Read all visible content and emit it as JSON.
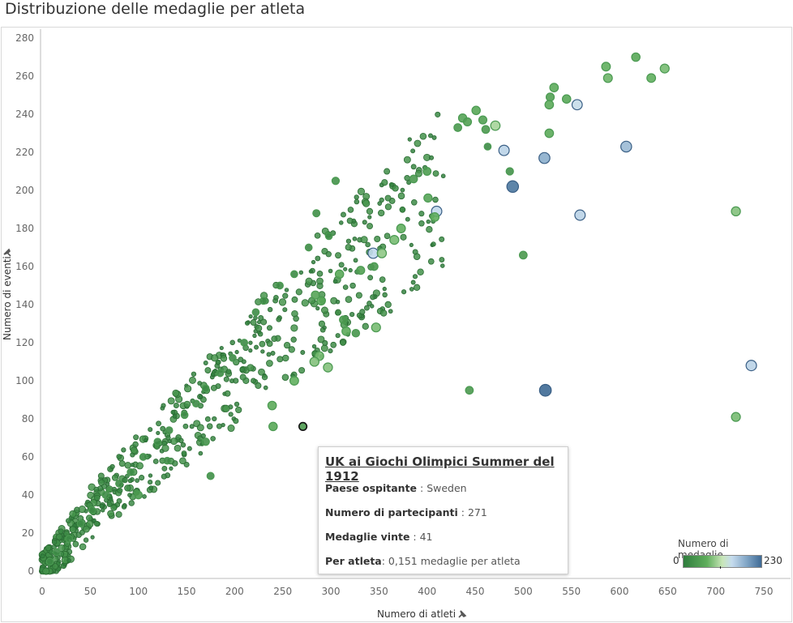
{
  "title": "Distribuzione delle medaglie per atleta",
  "axes": {
    "xlabel": "Numero di atleti",
    "ylabel": "Numero di eventi",
    "x_ticks": [
      "0",
      "50",
      "100",
      "150",
      "200",
      "250",
      "300",
      "350",
      "400",
      "450",
      "500",
      "550",
      "600",
      "650",
      "700",
      "750"
    ],
    "y_ticks": [
      "0",
      "20",
      "40",
      "60",
      "80",
      "100",
      "120",
      "140",
      "160",
      "180",
      "200",
      "220",
      "240",
      "260",
      "280"
    ],
    "pin_icon": "pin-icon"
  },
  "tooltip": {
    "heading": "UK ai Giochi Olimpici Summer del 1912",
    "host_label": "Paese ospitante",
    "host_value": " : Sweden",
    "participants_label": "Numero di partecipanti",
    "participants_value": " : 271",
    "medals_label": "Medaglie vinte",
    "medals_value": " : 41",
    "per_athlete_label": "Per atleta",
    "per_athlete_value": ": 0,151 medaglie per atleta"
  },
  "legend": {
    "title": "Numero di medaglie...",
    "min": "0",
    "max": "230",
    "colors": [
      "#2f7d3d",
      "#c8e6b8",
      "#3e6a95"
    ]
  },
  "chart_data": {
    "type": "scatter",
    "title": "Distribuzione delle medaglie per atleta",
    "xlabel": "Numero di atleti",
    "ylabel": "Numero di eventi",
    "xlim": [
      0,
      775
    ],
    "ylim": [
      0,
      280
    ],
    "grid": false,
    "legend": "bottom-right",
    "size_and_color": "Numero di medaglie (0-230)",
    "highlighted": {
      "x": 271,
      "y": 76,
      "label": "UK 1912"
    },
    "series": [
      {
        "points": [
          {
            "x": 617,
            "y": 270,
            "m": 60
          },
          {
            "x": 647,
            "y": 264,
            "m": 80
          },
          {
            "x": 586,
            "y": 265,
            "m": 70
          },
          {
            "x": 588,
            "y": 259,
            "m": 75
          },
          {
            "x": 633,
            "y": 259,
            "m": 70
          },
          {
            "x": 532,
            "y": 254,
            "m": 65
          },
          {
            "x": 545,
            "y": 248,
            "m": 60
          },
          {
            "x": 528,
            "y": 249,
            "m": 50
          },
          {
            "x": 527,
            "y": 245,
            "m": 65
          },
          {
            "x": 556,
            "y": 245,
            "m": 140
          },
          {
            "x": 451,
            "y": 242,
            "m": 60
          },
          {
            "x": 458,
            "y": 237,
            "m": 50
          },
          {
            "x": 437,
            "y": 238,
            "m": 55
          },
          {
            "x": 442,
            "y": 236,
            "m": 50
          },
          {
            "x": 471,
            "y": 234,
            "m": 100
          },
          {
            "x": 527,
            "y": 230,
            "m": 65
          },
          {
            "x": 461,
            "y": 232,
            "m": 40
          },
          {
            "x": 432,
            "y": 233,
            "m": 40
          },
          {
            "x": 480,
            "y": 221,
            "m": 150
          },
          {
            "x": 522,
            "y": 217,
            "m": 180
          },
          {
            "x": 607,
            "y": 223,
            "m": 170
          },
          {
            "x": 463,
            "y": 223,
            "m": 20
          },
          {
            "x": 486,
            "y": 210,
            "m": 30
          },
          {
            "x": 489,
            "y": 202,
            "m": 220
          },
          {
            "x": 721,
            "y": 189,
            "m": 85
          },
          {
            "x": 559,
            "y": 187,
            "m": 150
          },
          {
            "x": 410,
            "y": 189,
            "m": 145
          },
          {
            "x": 408,
            "y": 186,
            "m": 70
          },
          {
            "x": 401,
            "y": 196,
            "m": 55
          },
          {
            "x": 400,
            "y": 210,
            "m": 45
          },
          {
            "x": 386,
            "y": 206,
            "m": 40
          },
          {
            "x": 344,
            "y": 167,
            "m": 145
          },
          {
            "x": 353,
            "y": 167,
            "m": 90
          },
          {
            "x": 373,
            "y": 180,
            "m": 70
          },
          {
            "x": 366,
            "y": 174,
            "m": 80
          },
          {
            "x": 500,
            "y": 166,
            "m": 40
          },
          {
            "x": 347,
            "y": 128,
            "m": 80
          },
          {
            "x": 331,
            "y": 158,
            "m": 50
          },
          {
            "x": 345,
            "y": 160,
            "m": 40
          },
          {
            "x": 313,
            "y": 132,
            "m": 40
          },
          {
            "x": 326,
            "y": 125,
            "m": 35
          },
          {
            "x": 316,
            "y": 126,
            "m": 65
          },
          {
            "x": 309,
            "y": 156,
            "m": 60
          },
          {
            "x": 288,
            "y": 113,
            "m": 80
          },
          {
            "x": 297,
            "y": 107,
            "m": 85
          },
          {
            "x": 290,
            "y": 142,
            "m": 60
          },
          {
            "x": 284,
            "y": 145,
            "m": 55
          },
          {
            "x": 283,
            "y": 110,
            "m": 85
          },
          {
            "x": 262,
            "y": 100,
            "m": 70
          },
          {
            "x": 239,
            "y": 87,
            "m": 65
          },
          {
            "x": 240,
            "y": 76,
            "m": 60
          },
          {
            "x": 737,
            "y": 108,
            "m": 150
          },
          {
            "x": 721,
            "y": 81,
            "m": 80
          },
          {
            "x": 523,
            "y": 95,
            "m": 230
          },
          {
            "x": 444,
            "y": 95,
            "m": 40
          },
          {
            "x": 271,
            "y": 76,
            "m": 41
          },
          {
            "x": 305,
            "y": 205,
            "m": 30
          },
          {
            "x": 285,
            "y": 188,
            "m": 25
          },
          {
            "x": 298,
            "y": 176,
            "m": 20
          },
          {
            "x": 277,
            "y": 170,
            "m": 20
          },
          {
            "x": 262,
            "y": 156,
            "m": 20
          },
          {
            "x": 247,
            "y": 150,
            "m": 20
          },
          {
            "x": 230,
            "y": 142,
            "m": 20
          },
          {
            "x": 222,
            "y": 136,
            "m": 20
          },
          {
            "x": 210,
            "y": 120,
            "m": 20
          },
          {
            "x": 198,
            "y": 112,
            "m": 20
          },
          {
            "x": 185,
            "y": 104,
            "m": 20
          },
          {
            "x": 170,
            "y": 96,
            "m": 20
          },
          {
            "x": 160,
            "y": 88,
            "m": 20
          },
          {
            "x": 148,
            "y": 82,
            "m": 20
          },
          {
            "x": 132,
            "y": 74,
            "m": 20
          },
          {
            "x": 120,
            "y": 68,
            "m": 20
          },
          {
            "x": 105,
            "y": 60,
            "m": 20
          },
          {
            "x": 92,
            "y": 52,
            "m": 20
          },
          {
            "x": 80,
            "y": 46,
            "m": 20
          },
          {
            "x": 66,
            "y": 40,
            "m": 20
          },
          {
            "x": 52,
            "y": 32,
            "m": 20
          },
          {
            "x": 40,
            "y": 25,
            "m": 20
          },
          {
            "x": 28,
            "y": 17,
            "m": 20
          },
          {
            "x": 15,
            "y": 10,
            "m": 20
          },
          {
            "x": 8,
            "y": 5,
            "m": 20
          },
          {
            "x": 100,
            "y": 40,
            "m": 40
          },
          {
            "x": 170,
            "y": 68,
            "m": 30
          },
          {
            "x": 175,
            "y": 50,
            "m": 25
          },
          {
            "x": 130,
            "y": 58,
            "m": 20
          }
        ]
      }
    ]
  }
}
